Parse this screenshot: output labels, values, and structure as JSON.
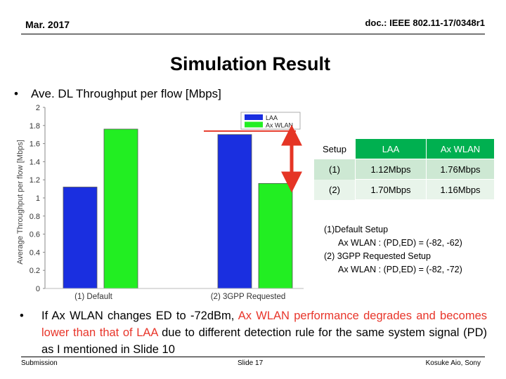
{
  "header": {
    "date": "Mar. 2017",
    "doc_id": "doc.: IEEE 802.11-17/0348r1"
  },
  "title": "Simulation Result",
  "bullet1": {
    "marker": "•",
    "text": "Ave. DL Throughput per flow [Mbps]"
  },
  "chart_data": {
    "type": "bar",
    "categories": [
      "(1) Default",
      "(2) 3GPP Requested"
    ],
    "series": [
      {
        "name": "LAA",
        "values": [
          1.12,
          1.7
        ],
        "color": "#1a2fe0"
      },
      {
        "name": "Ax WLAN",
        "values": [
          1.76,
          1.16
        ],
        "color": "#22ee22"
      }
    ],
    "ylabel": "Average Throughput per flow [Mbps]",
    "ylim": [
      0,
      2
    ],
    "yticks": [
      "0",
      "0.2",
      "0.4",
      "0.6",
      "0.8",
      "1",
      "1.2",
      "1.4",
      "1.6",
      "1.8",
      "2"
    ],
    "legend": "top-right",
    "grid": false,
    "annotation": "red double arrow between LAA (1.70) and Ax WLAN (1.16) in setup (2)"
  },
  "table": {
    "headers": [
      "Setup",
      "LAA",
      "Ax WLAN"
    ],
    "rows": [
      [
        "(1)",
        "1.12Mbps",
        "1.76Mbps"
      ],
      [
        "(2)",
        "1.70Mbps",
        "1.16Mbps"
      ]
    ],
    "accent": "#00b050"
  },
  "notes": {
    "l1": "(1)Default Setup",
    "l2": "Ax WLAN : (PD,ED) = (-82, -62)",
    "l3": "(2) 3GPP Requested Setup",
    "l4": "Ax WLAN : (PD,ED) = (-82, -72)"
  },
  "bullet2": {
    "marker": "•",
    "part1": "If Ax WLAN changes ED to -72dBm, ",
    "part2": "Ax WLAN performance degrades and becomes lower than that of LAA",
    "part3": " due to different detection rule for the same system signal (PD) as I mentioned in Slide 10"
  },
  "footer": {
    "left": "Submission",
    "center": "Slide 17",
    "right": "Kosuke Aio, Sony"
  }
}
